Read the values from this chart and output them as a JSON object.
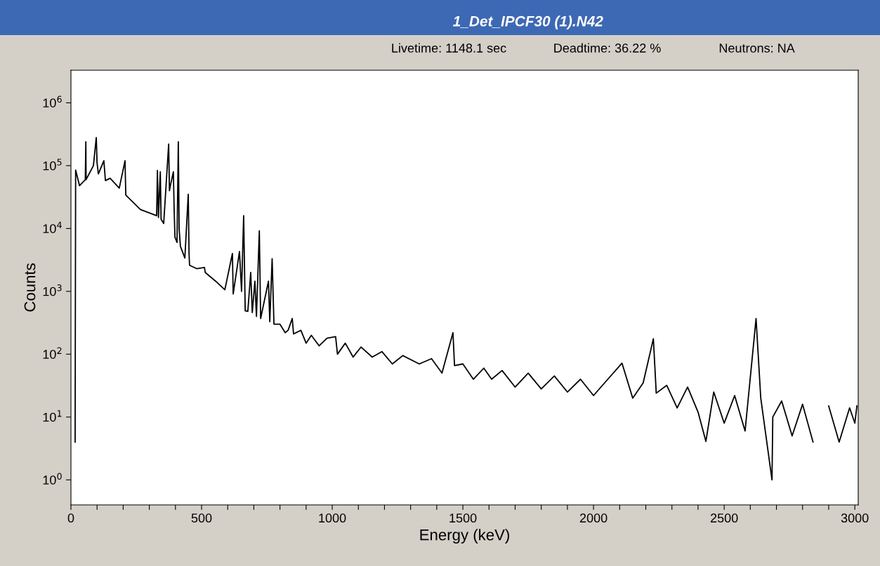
{
  "chart_data": {
    "type": "line",
    "title": "1_Det_IPCF30 (1).N42",
    "annotations": [
      "Livetime: 1148.1 sec",
      "Deadtime: 36.22 %",
      "Neutrons: NA"
    ],
    "xlabel": "Energy (keV)",
    "ylabel": "Counts",
    "log": "y",
    "grid": false,
    "marker": "none",
    "line_style": "solid",
    "xlim": [
      0,
      3013
    ],
    "ylim": [
      0.4,
      3300000
    ],
    "xticks": [
      0,
      {
        "value": 100,
        "label": null
      },
      {
        "value": 200,
        "label": null
      },
      {
        "value": 300,
        "label": null
      },
      {
        "value": 400,
        "label": null
      },
      500,
      {
        "value": 600,
        "label": null
      },
      {
        "value": 700,
        "label": null
      },
      {
        "value": 800,
        "label": null
      },
      {
        "value": 900,
        "label": null
      },
      1000,
      {
        "value": 1100,
        "label": null
      },
      {
        "value": 1200,
        "label": null
      },
      {
        "value": 1300,
        "label": null
      },
      {
        "value": 1400,
        "label": null
      },
      1500,
      {
        "value": 1600,
        "label": null
      },
      {
        "value": 1700,
        "label": null
      },
      {
        "value": 1800,
        "label": null
      },
      {
        "value": 1900,
        "label": null
      },
      2000,
      {
        "value": 2100,
        "label": null
      },
      {
        "value": 2200,
        "label": null
      },
      {
        "value": 2300,
        "label": null
      },
      {
        "value": 2400,
        "label": null
      },
      2500,
      {
        "value": 2600,
        "label": null
      },
      {
        "value": 2700,
        "label": null
      },
      {
        "value": 2800,
        "label": null
      },
      {
        "value": 2900,
        "label": null
      },
      3000
    ],
    "yticks": [
      {
        "value": 1,
        "label": "10$^{0}$"
      },
      {
        "value": 10,
        "label": "10$^{1}$"
      },
      {
        "value": 100,
        "label": "10$^{2}$"
      },
      {
        "value": 1000,
        "label": "10$^{3}$"
      },
      {
        "value": 10000,
        "label": "10$^{4}$"
      },
      {
        "value": 100000,
        "label": "10$^{5}$"
      },
      {
        "value": 1000000,
        "label": "10$^{6}$"
      }
    ],
    "series": [
      {
        "color": "#000000",
        "x": [
          16,
          18,
          33,
          55,
          57,
          58,
          86,
          97,
          100,
          105,
          126,
          132,
          150,
          185,
          207,
          210,
          266,
          328,
          331,
          335,
          342,
          345,
          355,
          374,
          377,
          381,
          392,
          395,
          398,
          406,
          411,
          414,
          419,
          436,
          449,
          452,
          454,
          481,
          511,
          514,
          554,
          589,
          618,
          621,
          645,
          653,
          661,
          667,
          677,
          688,
          694,
          704,
          710,
          721,
          726,
          756,
          761,
          770,
          777,
          800,
          820,
          831,
          847,
          852,
          880,
          900,
          920,
          950,
          980,
          1013,
          1020,
          1050,
          1080,
          1110,
          1153,
          1190,
          1230,
          1270,
          1333,
          1380,
          1420,
          1462,
          1468,
          1500,
          1540,
          1580,
          1610,
          1650,
          1700,
          1750,
          1800,
          1850,
          1900,
          1950,
          2000,
          2050,
          2109,
          2150,
          2190,
          2229,
          2240,
          2280,
          2320,
          2360,
          2400,
          2430,
          2460,
          2500,
          2540,
          2580,
          2622,
          2640,
          2683,
          2686,
          2720,
          2760,
          2800,
          2840,
          2882,
          2900,
          2940,
          2980,
          3000,
          3008
        ],
        "values": [
          4,
          85000,
          48000,
          60000,
          240000,
          60000,
          100000,
          280000,
          110000,
          74000,
          120000,
          58000,
          63000,
          44000,
          120000,
          34000,
          20000,
          16000,
          84000,
          15000,
          80000,
          14000,
          12000,
          220000,
          40000,
          49000,
          80000,
          20000,
          7300,
          6000,
          240000,
          10000,
          5200,
          3400,
          35000,
          4000,
          2600,
          2300,
          2400,
          2000,
          1450,
          1060,
          4000,
          910,
          4300,
          1000,
          16000,
          490,
          480,
          2000,
          460,
          1450,
          400,
          9200,
          370,
          1450,
          330,
          3300,
          300,
          300,
          220,
          240,
          370,
          210,
          240,
          150,
          200,
          136,
          180,
          190,
          100,
          150,
          90,
          130,
          90,
          110,
          70,
          95,
          70,
          85,
          50,
          220,
          66,
          70,
          40,
          60,
          40,
          55,
          30,
          50,
          28,
          45,
          25,
          40,
          22,
          38,
          72,
          20,
          35,
          176,
          24,
          32,
          14,
          30,
          12,
          4.1,
          25,
          8,
          22,
          6,
          370,
          20,
          1.0,
          10,
          18,
          5,
          16,
          4,
          null,
          15,
          4,
          14,
          8,
          15
        ]
      }
    ]
  }
}
